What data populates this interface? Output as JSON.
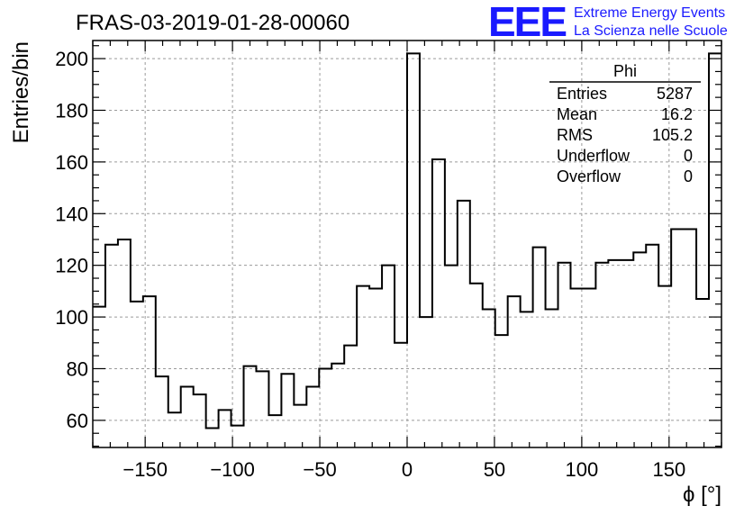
{
  "chart_data": {
    "type": "histogram",
    "title": "FRAS-03-2019-01-28-00060",
    "xlabel": "ϕ [°]",
    "ylabel": "Entries/bin",
    "xlim": [
      -180,
      180
    ],
    "ylim": [
      49.5,
      207
    ],
    "grid": true,
    "bin_edges_start": -180,
    "bin_width": 7.2,
    "values": [
      104,
      128,
      130,
      106,
      108,
      77,
      63,
      73,
      70,
      57,
      64,
      58,
      81,
      79,
      62,
      78,
      66,
      73,
      80,
      82,
      89,
      112,
      111,
      120,
      90,
      202,
      100,
      161,
      120,
      145,
      113,
      103,
      93,
      108,
      102,
      127,
      103,
      121,
      111,
      111,
      121,
      122,
      122,
      125,
      128,
      112,
      134,
      134,
      107,
      202
    ],
    "x_ticks": [
      -150,
      -100,
      -50,
      0,
      50,
      100,
      150
    ],
    "x_tick_labels": [
      "−150",
      "−100",
      "−50",
      "0",
      "50",
      "100",
      "150"
    ],
    "y_ticks": [
      60,
      80,
      100,
      120,
      140,
      160,
      180,
      200
    ],
    "y_tick_labels": [
      "60",
      "80",
      "100",
      "120",
      "140",
      "160",
      "180",
      "200"
    ]
  },
  "stats_box": {
    "title": "Phi",
    "rows": [
      {
        "label": "Entries",
        "value": "5287"
      },
      {
        "label": "Mean",
        "value": "16.2"
      },
      {
        "label": "RMS",
        "value": "105.2"
      },
      {
        "label": "Underflow",
        "value": "0"
      },
      {
        "label": "Overflow",
        "value": "0"
      }
    ]
  },
  "logo": {
    "mark": "EEE",
    "line1": "Extreme Energy Events",
    "line2": "La Scienza nelle Scuole"
  }
}
